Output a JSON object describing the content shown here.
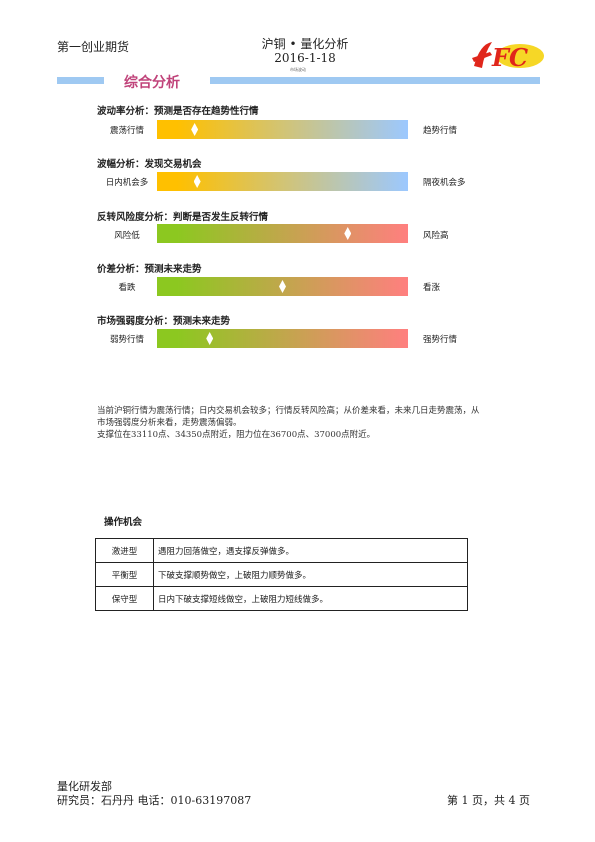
{
  "header": {
    "company": "第一创业期货",
    "title": "沪铜 • 量化分析",
    "date": "2016-1-18",
    "tiny_note": "市场波动"
  },
  "section_title": "综合分析",
  "indicators": [
    {
      "title": "波动率分析：预测是否存在趋势性行情",
      "left_label": "震荡行情",
      "right_label": "趋势行情",
      "marker_position": 0.15,
      "gradient": [
        "#ffc000",
        "#9cc8ff"
      ]
    },
    {
      "title": "波幅分析：发现交易机会",
      "left_label": "日内机会多",
      "right_label": "隔夜机会多",
      "marker_position": 0.16,
      "gradient": [
        "#ffc000",
        "#9cc8ff"
      ]
    },
    {
      "title": "反转风险度分析：判断是否发生反转行情",
      "left_label": "风险低",
      "right_label": "风险高",
      "marker_position": 0.76,
      "gradient": [
        "#8cc820",
        "#ff7f7f"
      ]
    },
    {
      "title": "价差分析：预测未来走势",
      "left_label": "看跌",
      "right_label": "看涨",
      "marker_position": 0.5,
      "gradient": [
        "#8cc820",
        "#ff7f7f"
      ]
    },
    {
      "title": "市场强弱度分析：预测未来走势",
      "left_label": "弱势行情",
      "right_label": "强势行情",
      "marker_position": 0.21,
      "gradient": [
        "#8cc820",
        "#ff7f7f"
      ]
    }
  ],
  "summary": {
    "line1": "当前沪铜行情为震荡行情；日内交易机会较多；行情反转风险高；从价差来看，未来几日走势震荡，从市场强弱度分析来看，走势震荡偏弱。",
    "line2": "支撑位在33110点、34350点附近，阻力位在36700点、37000点附近。"
  },
  "operations": {
    "title": "操作机会",
    "rows": [
      {
        "type": "激进型",
        "desc": "遇阻力回落做空，遇支撑反弹做多。"
      },
      {
        "type": "平衡型",
        "desc": "下破支撑顺势做空，上破阻力顺势做多。"
      },
      {
        "type": "保守型",
        "desc": "日内下破支撑短线做空，上破阻力短线做多。"
      }
    ]
  },
  "footer": {
    "dept": "量化研发部",
    "contact": "研究员：石丹丹   电话：010-63197087",
    "page": "第 1 页，共 4 页"
  },
  "logo_text": "FC"
}
